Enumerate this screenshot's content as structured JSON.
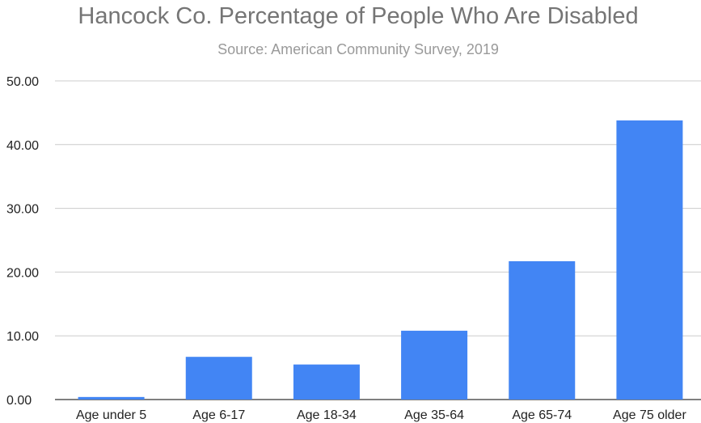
{
  "chart_data": {
    "type": "bar",
    "title": "Hancock Co. Percentage of People Who Are Disabled",
    "subtitle": "Source: American Community Survey, 2019",
    "xlabel": "",
    "ylabel": "",
    "categories": [
      "Age under 5",
      "Age 6-17",
      "Age 18-34",
      "Age 35-64",
      "Age 65-74",
      "Age 75 older"
    ],
    "series": [
      {
        "values": [
          0.4,
          6.7,
          5.5,
          10.8,
          21.7,
          43.8
        ],
        "color": "#4285f4"
      }
    ],
    "ylim": [
      0,
      50
    ],
    "yticks": [
      "0.00",
      "10.00",
      "20.00",
      "30.00",
      "40.00",
      "50.00"
    ],
    "grid": true,
    "legend": "none"
  }
}
